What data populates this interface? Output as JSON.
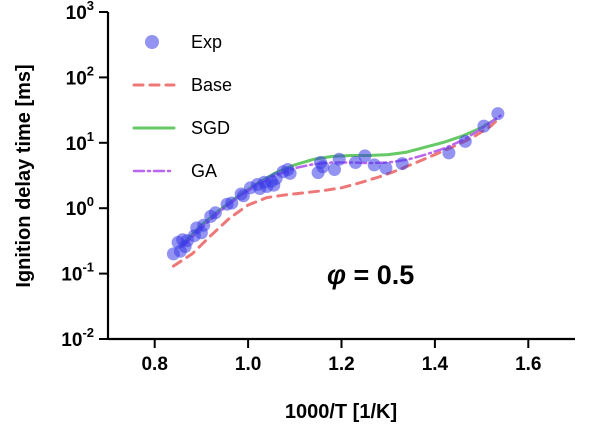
{
  "chart_data": {
    "type": "scatter",
    "xlabel": "1000/T [1/K]",
    "ylabel": "Ignition delay time [ms]",
    "xlim": [
      0.7,
      1.7
    ],
    "ylim": [
      0.01,
      1000
    ],
    "y_scale": "log",
    "x_ticks": [
      "0.8",
      "1.0",
      "1.2",
      "1.4",
      "1.6"
    ],
    "x_tick_values": [
      0.8,
      1.0,
      1.2,
      1.4,
      1.6
    ],
    "y_ticks": [
      {
        "base": "10",
        "exp": "-2",
        "value": 0.01
      },
      {
        "base": "10",
        "exp": "-1",
        "value": 0.1
      },
      {
        "base": "10",
        "exp": "0",
        "value": 1
      },
      {
        "base": "10",
        "exp": "1",
        "value": 10
      },
      {
        "base": "10",
        "exp": "2",
        "value": 100
      },
      {
        "base": "10",
        "exp": "3",
        "value": 1000
      }
    ],
    "grid": false,
    "legend_position": "top-left",
    "annotation": {
      "symbol": "φ",
      "text": " = 0.5"
    },
    "series": [
      {
        "name": "Exp",
        "kind": "scatter",
        "color": "#3a3ae8",
        "points": [
          [
            0.84,
            0.2
          ],
          [
            0.85,
            0.3
          ],
          [
            0.855,
            0.22
          ],
          [
            0.86,
            0.33
          ],
          [
            0.865,
            0.26
          ],
          [
            0.87,
            0.32
          ],
          [
            0.885,
            0.38
          ],
          [
            0.89,
            0.5
          ],
          [
            0.9,
            0.42
          ],
          [
            0.905,
            0.55
          ],
          [
            0.92,
            0.75
          ],
          [
            0.93,
            0.85
          ],
          [
            0.955,
            1.15
          ],
          [
            0.965,
            1.2
          ],
          [
            0.985,
            1.65
          ],
          [
            0.99,
            1.55
          ],
          [
            1.005,
            2.05
          ],
          [
            1.02,
            2.3
          ],
          [
            1.025,
            2.0
          ],
          [
            1.035,
            2.5
          ],
          [
            1.04,
            2.15
          ],
          [
            1.05,
            2.6
          ],
          [
            1.055,
            2.25
          ],
          [
            1.06,
            2.85
          ],
          [
            1.075,
            3.6
          ],
          [
            1.085,
            3.9
          ],
          [
            1.09,
            3.4
          ],
          [
            1.15,
            3.5
          ],
          [
            1.155,
            5.0
          ],
          [
            1.16,
            4.3
          ],
          [
            1.185,
            3.9
          ],
          [
            1.195,
            5.6
          ],
          [
            1.23,
            5.0
          ],
          [
            1.25,
            6.3
          ],
          [
            1.27,
            4.6
          ],
          [
            1.295,
            4.1
          ],
          [
            1.33,
            4.8
          ],
          [
            1.43,
            7.0
          ],
          [
            1.465,
            10.5
          ],
          [
            1.505,
            18.0
          ],
          [
            1.535,
            28.0
          ]
        ]
      },
      {
        "name": "Base",
        "kind": "line",
        "color": "#ee7777",
        "points": [
          [
            0.84,
            0.13
          ],
          [
            0.88,
            0.2
          ],
          [
            0.92,
            0.38
          ],
          [
            0.96,
            0.7
          ],
          [
            1.0,
            1.12
          ],
          [
            1.04,
            1.45
          ],
          [
            1.08,
            1.6
          ],
          [
            1.12,
            1.72
          ],
          [
            1.16,
            1.85
          ],
          [
            1.2,
            2.05
          ],
          [
            1.24,
            2.45
          ],
          [
            1.28,
            3.0
          ],
          [
            1.32,
            3.8
          ],
          [
            1.36,
            5.0
          ],
          [
            1.4,
            6.6
          ],
          [
            1.44,
            8.8
          ],
          [
            1.48,
            12.0
          ],
          [
            1.52,
            18.0
          ],
          [
            1.54,
            25.0
          ]
        ]
      },
      {
        "name": "SGD",
        "kind": "line",
        "color": "#66c966",
        "points": [
          [
            0.86,
            0.28
          ],
          [
            0.9,
            0.55
          ],
          [
            0.94,
            0.95
          ],
          [
            0.98,
            1.55
          ],
          [
            1.02,
            2.4
          ],
          [
            1.06,
            3.5
          ],
          [
            1.1,
            4.6
          ],
          [
            1.14,
            5.6
          ],
          [
            1.18,
            6.2
          ],
          [
            1.22,
            6.4
          ],
          [
            1.26,
            6.4
          ],
          [
            1.3,
            6.6
          ],
          [
            1.34,
            7.2
          ],
          [
            1.38,
            8.6
          ],
          [
            1.42,
            10.2
          ],
          [
            1.46,
            12.8
          ],
          [
            1.5,
            17.0
          ],
          [
            1.53,
            23.0
          ]
        ]
      },
      {
        "name": "GA",
        "kind": "line",
        "color": "#bb66ee",
        "points": [
          [
            0.86,
            0.26
          ],
          [
            0.9,
            0.5
          ],
          [
            0.94,
            0.9
          ],
          [
            0.98,
            1.5
          ],
          [
            1.02,
            2.3
          ],
          [
            1.06,
            3.2
          ],
          [
            1.1,
            4.1
          ],
          [
            1.14,
            4.7
          ],
          [
            1.18,
            5.0
          ],
          [
            1.22,
            5.0
          ],
          [
            1.26,
            4.9
          ],
          [
            1.3,
            5.0
          ],
          [
            1.34,
            5.5
          ],
          [
            1.38,
            6.6
          ],
          [
            1.42,
            8.2
          ],
          [
            1.46,
            11.0
          ],
          [
            1.5,
            16.5
          ],
          [
            1.54,
            26.0
          ]
        ]
      }
    ]
  }
}
